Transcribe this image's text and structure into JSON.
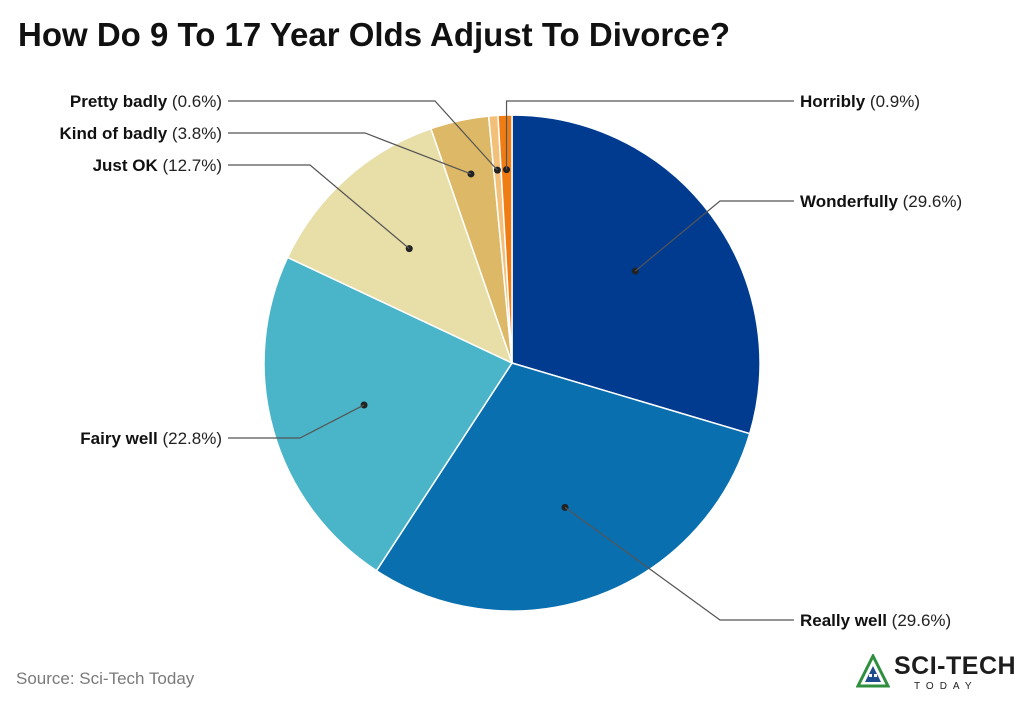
{
  "chart_data": {
    "type": "pie",
    "title": "How Do 9 To 17 Year Olds Adjust To Divorce?",
    "slices": [
      {
        "label": "Wonderfully",
        "value": 29.6,
        "value_label": "(29.6%)",
        "color": "#003b90"
      },
      {
        "label": "Really well",
        "value": 29.6,
        "value_label": "(29.6%)",
        "color": "#0a6faf"
      },
      {
        "label": "Fairy well",
        "value": 22.8,
        "value_label": "(22.8%)",
        "color": "#4ab4c8"
      },
      {
        "label": "Just OK",
        "value": 12.7,
        "value_label": "(12.7%)",
        "color": "#e8dea8"
      },
      {
        "label": "Kind of badly",
        "value": 3.8,
        "value_label": "(3.8%)",
        "color": "#ddb866"
      },
      {
        "label": "Pretty badly",
        "value": 0.6,
        "value_label": "(0.6%)",
        "color": "#f3c07a"
      },
      {
        "label": "Horribly",
        "value": 0.9,
        "value_label": "(0.9%)",
        "color": "#f07d14"
      }
    ],
    "start_angle": "12 o'clock",
    "direction": "clockwise"
  },
  "footer": {
    "source": "Source: Sci-Tech Today",
    "brand_name": "SCI-TECH",
    "brand_sub": "TODAY"
  }
}
